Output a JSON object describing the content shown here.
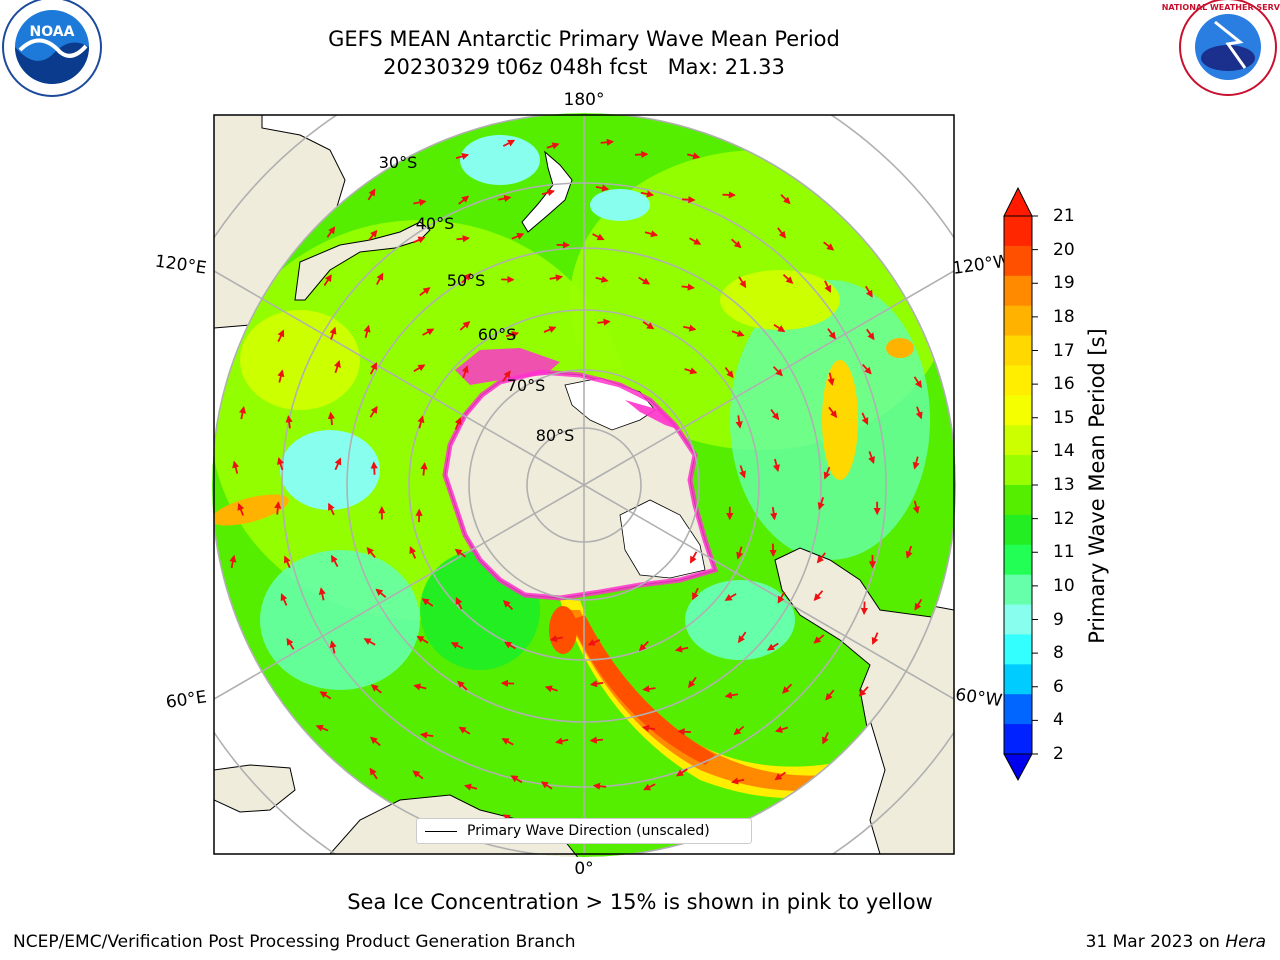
{
  "title": {
    "line1": "GEFS MEAN Antarctic Primary Wave Mean Period",
    "line2": "20230329 t06z 048h fcst   Max: 21.33"
  },
  "logos": {
    "left": "NOAA",
    "right": "NATIONAL WEATHER SERVICE"
  },
  "map": {
    "lon_labels": {
      "top": "180°",
      "bottom": "0°",
      "upper_left": "120°E",
      "upper_right": "120°W",
      "lower_left": "60°E",
      "lower_right": "60°W"
    },
    "lat_labels": [
      "30°S",
      "40°S",
      "50°S",
      "60°S",
      "70°S",
      "80°S"
    ],
    "legend": "Primary Wave Direction (unscaled)",
    "colors": {
      "land": "#efecdc",
      "ice": "#ff33cc",
      "arrow": "#ee1111"
    }
  },
  "colorbar": {
    "label": "Primary Wave Mean Period [s]",
    "ticks": [
      "21",
      "20",
      "19",
      "18",
      "17",
      "16",
      "15",
      "14",
      "13",
      "12",
      "11",
      "10",
      "9",
      "8",
      "6",
      "4",
      "2"
    ],
    "colors": [
      "#ff2600",
      "#ff5000",
      "#ff8a00",
      "#ffb300",
      "#ffd800",
      "#ffee00",
      "#f5ff00",
      "#ccff00",
      "#99ff00",
      "#55ee00",
      "#22ee22",
      "#22ff55",
      "#66ffaa",
      "#88ffee",
      "#33ffff",
      "#00ccff",
      "#0066ff",
      "#0022ff"
    ]
  },
  "footer": {
    "note": "Sea Ice Concentration > 15% is shown in pink to yellow",
    "credit_left": "NCEP/EMC/Verification Post Processing Product Generation Branch",
    "credit_right_prefix": "31 Mar 2023 on ",
    "credit_right_host": "Hera"
  }
}
